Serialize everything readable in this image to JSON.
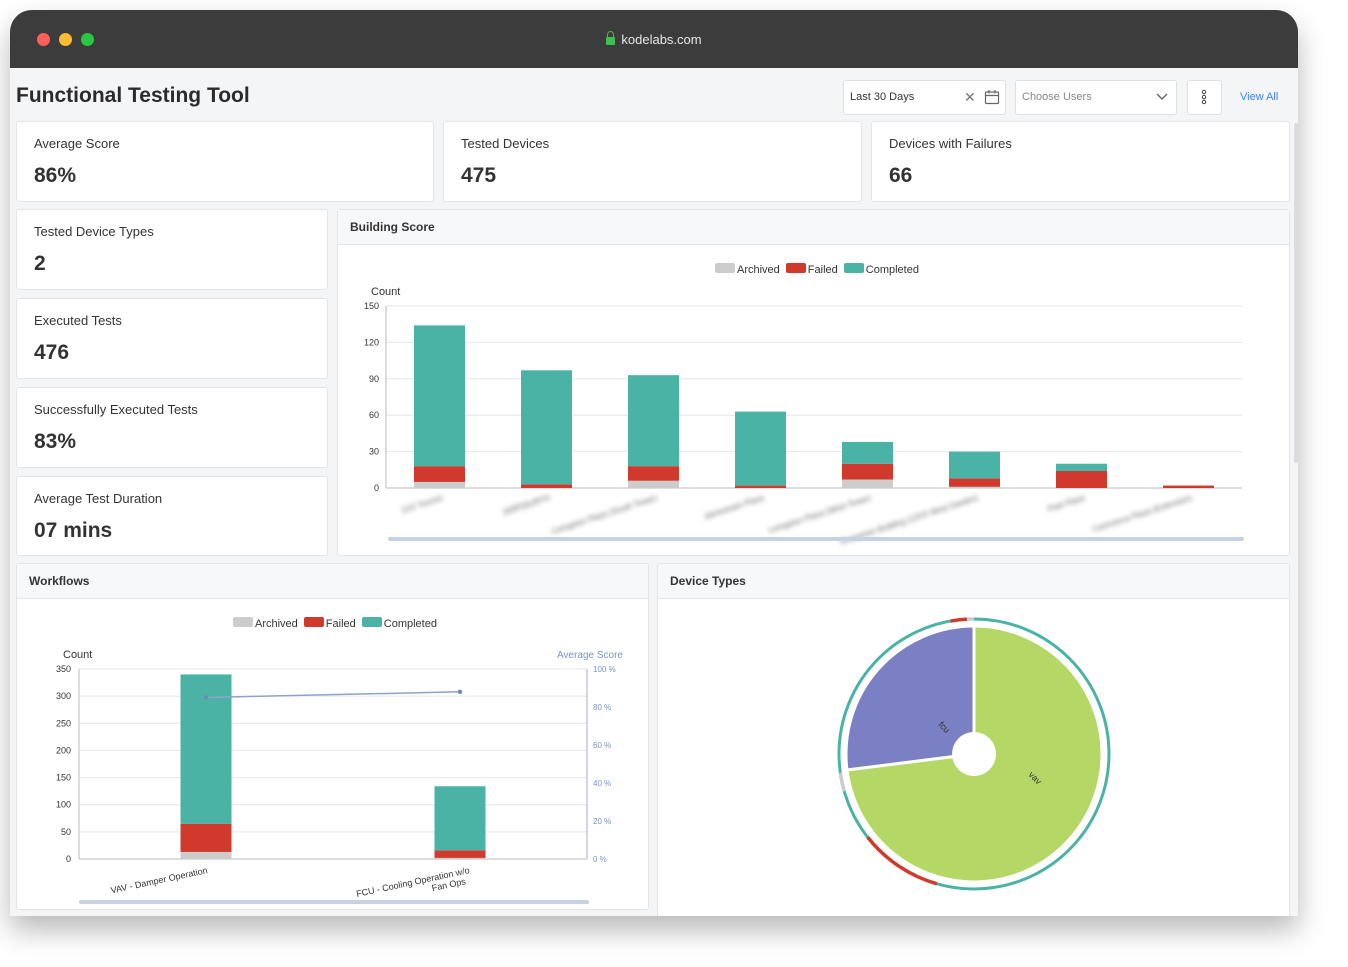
{
  "browser": {
    "url": "kodelabs.com"
  },
  "page": {
    "title": "Functional Testing Tool"
  },
  "filters": {
    "date_range": "Last 30 Days",
    "users_placeholder": "Choose Users",
    "view_all": "View All"
  },
  "stats": {
    "average_score": {
      "label": "Average Score",
      "value": "86%"
    },
    "tested_devices": {
      "label": "Tested Devices",
      "value": "475"
    },
    "devices_with_failures": {
      "label": "Devices with Failures",
      "value": "66"
    },
    "tested_device_types": {
      "label": "Tested Device Types",
      "value": "2"
    },
    "executed_tests": {
      "label": "Executed Tests",
      "value": "476"
    },
    "successful_tests": {
      "label": "Successfully Executed Tests",
      "value": "83%"
    },
    "avg_duration": {
      "label": "Average Test Duration",
      "value": "07 mins"
    }
  },
  "colors": {
    "archived": "#cccccc",
    "failed": "#d03a2c",
    "completed": "#4ab3a6",
    "fcu": "#7b80c4",
    "vav": "#b5d766",
    "avg_line": "#8fa3c8"
  },
  "legend": {
    "archived": "Archived",
    "failed": "Failed",
    "completed": "Completed"
  },
  "building_score": {
    "title": "Building Score",
    "chart_data": {
      "type": "bar",
      "stacked": true,
      "ylabel": "Count",
      "ylim": [
        0,
        150
      ],
      "yticks": [
        0,
        30,
        60,
        90,
        120,
        150
      ],
      "categories": [
        "",
        "",
        "",
        "",
        "",
        "",
        "",
        ""
      ],
      "blurred_category_labels": [
        "1XX Tourion",
        "[ARP]SURTH",
        "Livingston Plaza (South Tower)",
        "Jamestown Plaza",
        "Livingston Plaza (West Tower)",
        "Evergreen Building (12XX West Garden)",
        "Park Plaza",
        "Commerce Plaza (Extension)"
      ],
      "series": [
        {
          "name": "Archived",
          "values": [
            5,
            0,
            6,
            0,
            7,
            1,
            0,
            0
          ]
        },
        {
          "name": "Failed",
          "values": [
            13,
            3,
            12,
            2,
            13,
            7,
            14,
            2
          ]
        },
        {
          "name": "Completed",
          "values": [
            116,
            94,
            75,
            61,
            18,
            22,
            6,
            0
          ]
        }
      ]
    }
  },
  "workflows": {
    "title": "Workflows",
    "chart_data": {
      "type": "bar",
      "stacked": true,
      "ylabel": "Count",
      "y2label": "Average Score",
      "ylim": [
        0,
        350
      ],
      "yticks": [
        0,
        50,
        100,
        150,
        200,
        250,
        300,
        350
      ],
      "y2ticks": [
        "0 %",
        "20 %",
        "40 %",
        "60 %",
        "80 %",
        "100 %"
      ],
      "categories": [
        "VAV - Damper Operation",
        "FCU - Cooling Operation w/o Fan Ops"
      ],
      "series": [
        {
          "name": "Archived",
          "values": [
            13,
            2
          ]
        },
        {
          "name": "Failed",
          "values": [
            52,
            14
          ]
        },
        {
          "name": "Completed",
          "values": [
            275,
            118
          ]
        }
      ],
      "line": {
        "name": "Average Score",
        "values": [
          85,
          88
        ]
      }
    }
  },
  "device_types": {
    "title": "Device Types",
    "chart_data": {
      "type": "pie",
      "labels": [
        "fcu",
        "vav"
      ],
      "values": [
        27,
        73
      ]
    }
  }
}
